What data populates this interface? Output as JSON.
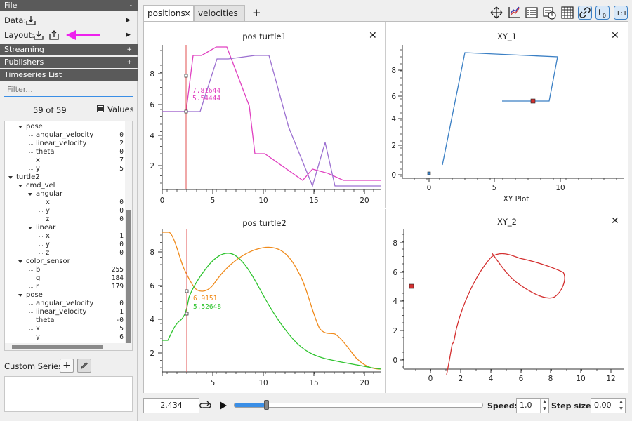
{
  "left": {
    "file_header": "File",
    "file_toggle": "-",
    "data_label": "Data:",
    "layout_label": "Layout:",
    "streaming_header": "Streaming",
    "publishers_header": "Publishers",
    "timeseries_header": "Timeseries List",
    "plus": "+",
    "filter_placeholder": "Filter...",
    "count": "59 of 59",
    "values_label": "Values",
    "custom_series_label": "Custom Series:",
    "tree": [
      {
        "label": "pose",
        "value": "",
        "indent": 2,
        "expander": true
      },
      {
        "label": "angular_velocity",
        "value": "0",
        "indent": 3,
        "expander": false
      },
      {
        "label": "linear_velocity",
        "value": "2",
        "indent": 3,
        "expander": false
      },
      {
        "label": "theta",
        "value": "0",
        "indent": 3,
        "expander": false
      },
      {
        "label": "x",
        "value": "7",
        "indent": 3,
        "expander": false
      },
      {
        "label": "y",
        "value": "5",
        "indent": 3,
        "expander": false
      },
      {
        "label": "turtle2",
        "value": "",
        "indent": 1,
        "expander": true
      },
      {
        "label": "cmd_vel",
        "value": "",
        "indent": 2,
        "expander": true
      },
      {
        "label": "angular",
        "value": "",
        "indent": 3,
        "expander": true
      },
      {
        "label": "x",
        "value": "0",
        "indent": 4,
        "expander": false
      },
      {
        "label": "y",
        "value": "0",
        "indent": 4,
        "expander": false
      },
      {
        "label": "z",
        "value": "0",
        "indent": 4,
        "expander": false
      },
      {
        "label": "linear",
        "value": "",
        "indent": 3,
        "expander": true
      },
      {
        "label": "x",
        "value": "1",
        "indent": 4,
        "expander": false
      },
      {
        "label": "y",
        "value": "0",
        "indent": 4,
        "expander": false
      },
      {
        "label": "z",
        "value": "0",
        "indent": 4,
        "expander": false
      },
      {
        "label": "color_sensor",
        "value": "",
        "indent": 2,
        "expander": true
      },
      {
        "label": "b",
        "value": "255",
        "indent": 3,
        "expander": false
      },
      {
        "label": "g",
        "value": "184",
        "indent": 3,
        "expander": false
      },
      {
        "label": "r",
        "value": "179",
        "indent": 3,
        "expander": false
      },
      {
        "label": "pose",
        "value": "",
        "indent": 2,
        "expander": true
      },
      {
        "label": "angular_velocity",
        "value": "0",
        "indent": 3,
        "expander": false
      },
      {
        "label": "linear_velocity",
        "value": "1",
        "indent": 3,
        "expander": false
      },
      {
        "label": "theta",
        "value": "-0",
        "indent": 3,
        "expander": false
      },
      {
        "label": "x",
        "value": "5",
        "indent": 3,
        "expander": false
      },
      {
        "label": "y",
        "value": "6",
        "indent": 3,
        "expander": false
      }
    ]
  },
  "tabs": [
    {
      "label": "positions",
      "close": "×"
    },
    {
      "label": "velocities"
    }
  ],
  "add_tab": "+",
  "panes": {
    "pos1": {
      "title": "pos turtle1",
      "xticks": [
        "0",
        "5",
        "10",
        "15",
        "20"
      ],
      "yticks": [
        "2",
        "4",
        "6",
        "8"
      ],
      "tooltip": [
        "7.81644",
        "5.54444"
      ]
    },
    "pos2": {
      "title": "pos turtle2",
      "xticks": [
        "5",
        "10",
        "15",
        "20"
      ],
      "yticks": [
        "2",
        "4",
        "6",
        "8"
      ],
      "tooltip": [
        "6.9151",
        "5.52648"
      ]
    },
    "xy1": {
      "title": "XY_1",
      "xlabel": "XY Plot",
      "xticks": [
        "0",
        "5",
        "10"
      ],
      "yticks": [
        "0",
        "2",
        "4",
        "6",
        "8"
      ]
    },
    "xy2": {
      "title": "XY_2",
      "xlabel": "XY Plot",
      "xticks": [
        "0",
        "2",
        "4",
        "6",
        "8",
        "10",
        "12"
      ],
      "yticks": [
        "0",
        "2",
        "4",
        "6",
        "8"
      ]
    }
  },
  "close": "✕",
  "bottom": {
    "time_value": "2.434",
    "speed_label": "Speed:",
    "speed_value": "1,0",
    "step_label": "Step size:",
    "step_value": "0,00",
    "slider_fraction": 0.12
  },
  "colors": {
    "magenta": "#e040c0",
    "purple": "#9b6fd0",
    "orange": "#f08a1a",
    "green": "#2ec42e",
    "blue": "#3a7fc4",
    "red": "#d43030",
    "cursor": "#e05050",
    "arrow": "#ee22ee"
  }
}
